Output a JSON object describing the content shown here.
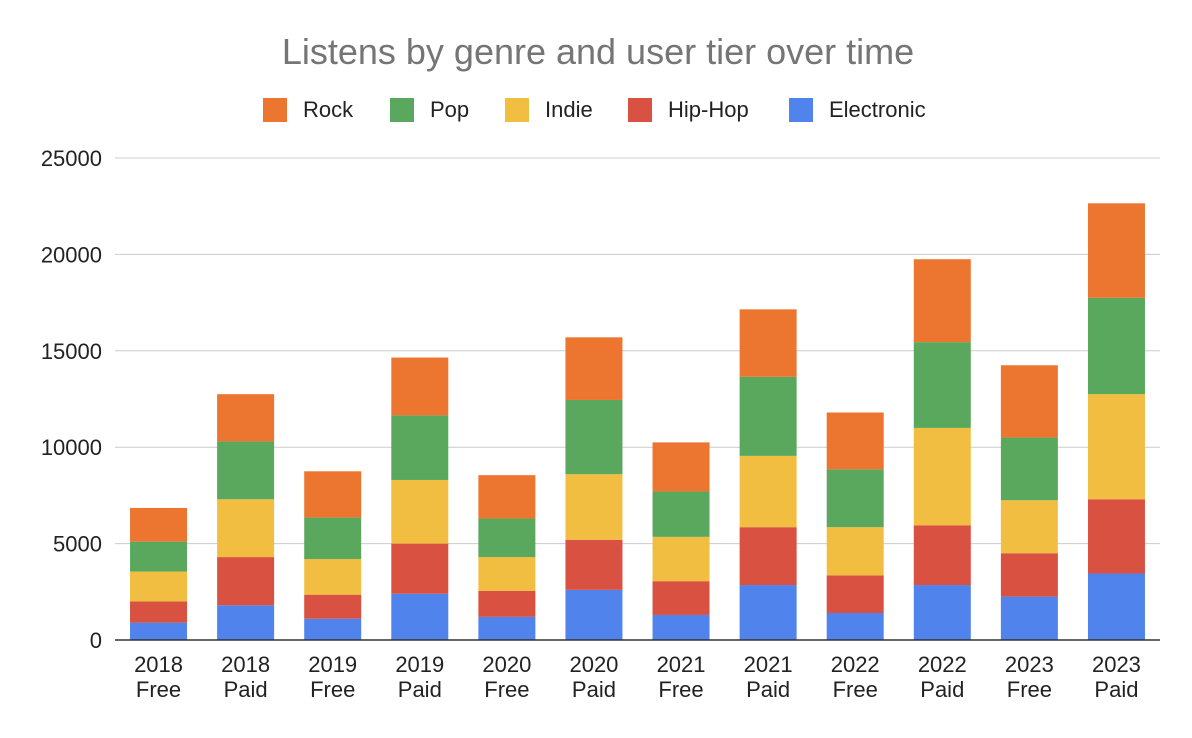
{
  "chart_data": {
    "type": "bar",
    "stacked": true,
    "title": "Listens by genre and user tier over time",
    "xlabel": "",
    "ylabel": "",
    "ylim": [
      0,
      25000
    ],
    "yticks": [
      0,
      5000,
      10000,
      15000,
      20000,
      25000
    ],
    "grid": true,
    "legend_position": "top",
    "categories": [
      [
        "2018",
        "Free"
      ],
      [
        "2018",
        "Paid"
      ],
      [
        "2019",
        "Free"
      ],
      [
        "2019",
        "Paid"
      ],
      [
        "2020",
        "Free"
      ],
      [
        "2020",
        "Paid"
      ],
      [
        "2021",
        "Free"
      ],
      [
        "2021",
        "Paid"
      ],
      [
        "2022",
        "Free"
      ],
      [
        "2022",
        "Paid"
      ],
      [
        "2023",
        "Free"
      ],
      [
        "2023",
        "Paid"
      ]
    ],
    "series": [
      {
        "name": "Electronic",
        "color": "#5083eb",
        "values": [
          900,
          1800,
          1100,
          2400,
          1200,
          2600,
          1300,
          2850,
          1400,
          2850,
          2250,
          3450
        ]
      },
      {
        "name": "Hip-Hop",
        "color": "#d95140",
        "values": [
          1100,
          2500,
          1250,
          2600,
          1350,
          2600,
          1750,
          3000,
          1950,
          3100,
          2250,
          3850
        ]
      },
      {
        "name": "Indie",
        "color": "#f1be41",
        "values": [
          1550,
          3000,
          1850,
          3300,
          1750,
          3400,
          2300,
          3700,
          2500,
          5050,
          2750,
          5450
        ]
      },
      {
        "name": "Pop",
        "color": "#5aa85e",
        "values": [
          1550,
          3000,
          2150,
          3350,
          2000,
          3850,
          2350,
          4100,
          3000,
          4450,
          3250,
          5000
        ]
      },
      {
        "name": "Rock",
        "color": "#ec7530",
        "values": [
          1750,
          2450,
          2400,
          3000,
          2250,
          3250,
          2550,
          3500,
          2950,
          4300,
          3750,
          4900
        ]
      }
    ],
    "legend_order": [
      "Rock",
      "Pop",
      "Indie",
      "Hip-Hop",
      "Electronic"
    ]
  }
}
